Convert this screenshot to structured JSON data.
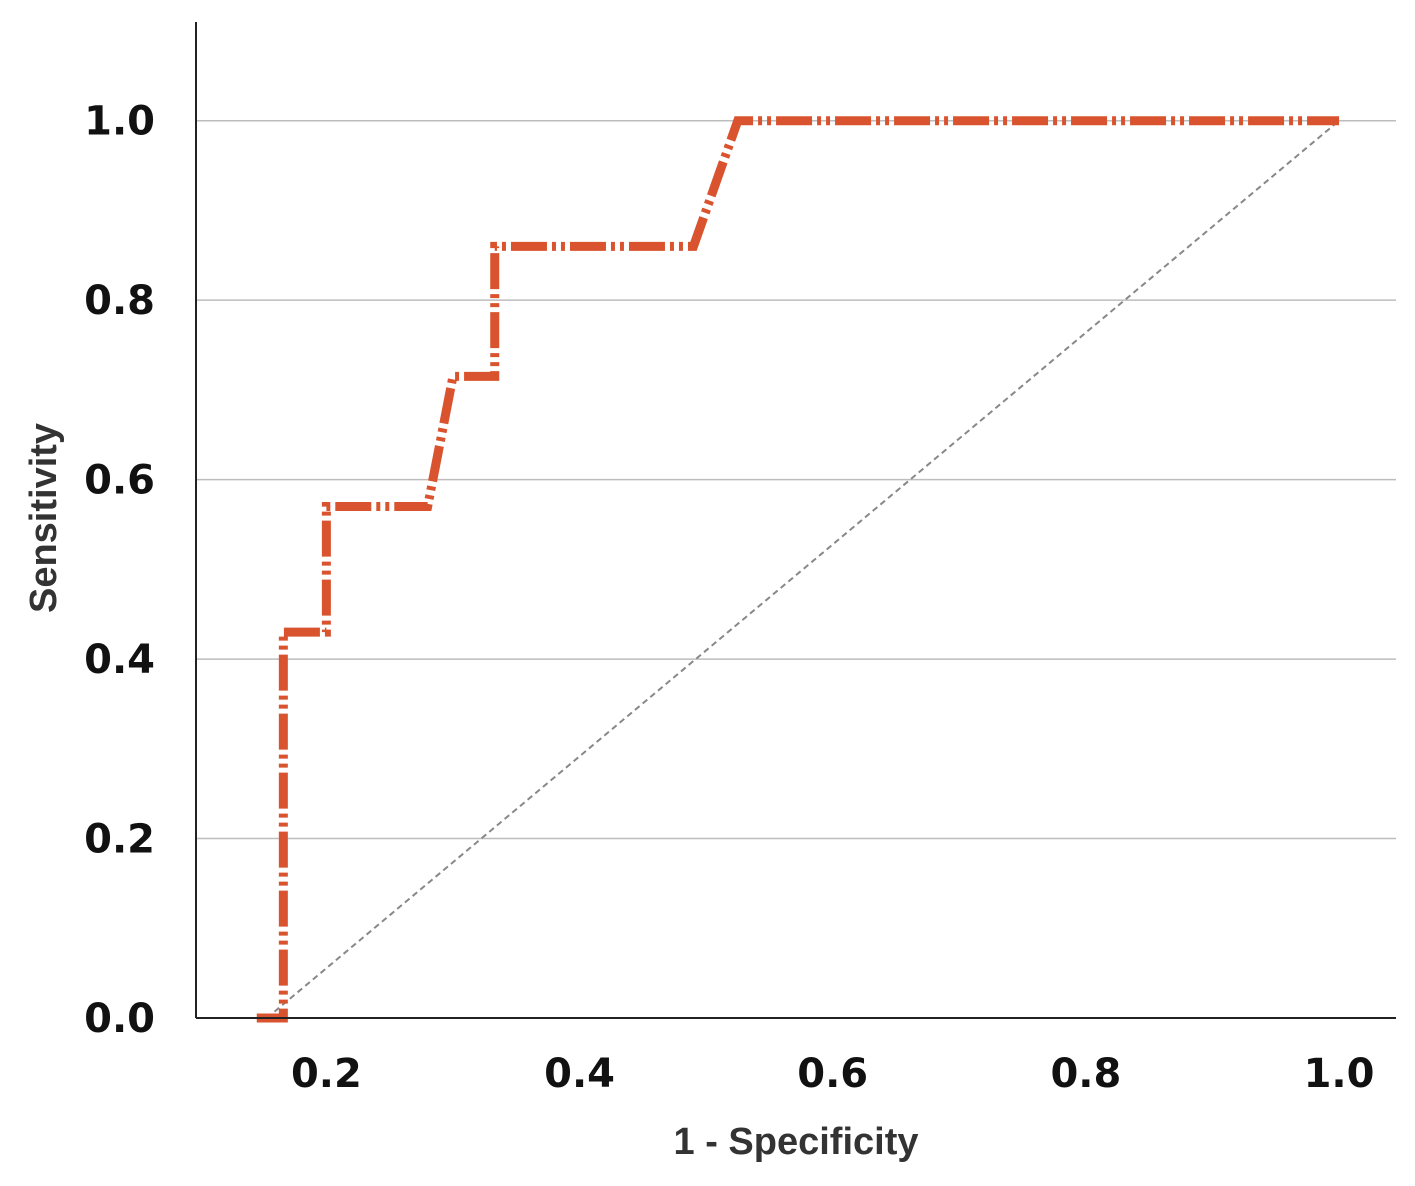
{
  "chart_data": {
    "type": "line",
    "title": "",
    "xlabel": "1 - Specificity",
    "ylabel": "Sensitivity",
    "xlim": [
      0.097,
      1.045
    ],
    "ylim": [
      0.0,
      1.11
    ],
    "x_ticks": [
      0.2,
      0.4,
      0.6,
      0.8,
      1.0
    ],
    "x_tick_labels": [
      "0.2",
      "0.4",
      "0.6",
      "0.8",
      "1.0"
    ],
    "y_ticks": [
      0.0,
      0.2,
      0.4,
      0.6,
      0.8,
      1.0
    ],
    "y_tick_labels": [
      "0.0",
      "0.2",
      "0.4",
      "0.6",
      "0.8",
      "1.0"
    ],
    "grid": "horizontal",
    "legend": "none",
    "series": [
      {
        "style": "dash-dot-dot",
        "color": "#d9532e",
        "x": [
          0.145,
          0.166,
          0.166,
          0.2,
          0.2,
          0.28,
          0.3,
          0.333,
          0.333,
          0.49,
          0.525,
          1.0
        ],
        "y": [
          0.0,
          0.0,
          0.43,
          0.43,
          0.57,
          0.57,
          0.715,
          0.715,
          0.86,
          0.86,
          1.0,
          1.0
        ]
      },
      {
        "style": "dashed",
        "color": "#888888",
        "x": [
          0.153,
          1.0
        ],
        "y": [
          0.0,
          1.0
        ]
      }
    ]
  }
}
